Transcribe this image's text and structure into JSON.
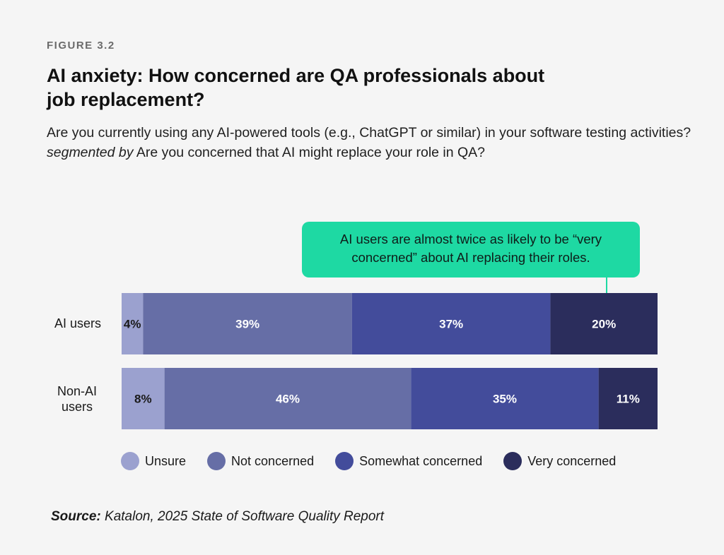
{
  "figure_label": "FIGURE 3.2",
  "title": "AI anxiety: How concerned are QA professionals about job replacement?",
  "subtitle_part1": "Are you currently using any AI-powered tools (e.g., ChatGPT or similar) in your software testing activities?",
  "subtitle_italic": "segmented by",
  "subtitle_part2": "Are you concerned that AI might replace your role in QA?",
  "callout_text": "AI users are almost twice as likely to be “very concerned” about AI replacing their roles.",
  "source_label": "Source:",
  "source_text": "Katalon, 2025 State of Software Quality Report",
  "chart_data": {
    "type": "bar",
    "orientation": "horizontal",
    "stacked": true,
    "normalized": true,
    "categories": [
      "AI users",
      "Non-AI users"
    ],
    "series": [
      {
        "name": "Unsure",
        "values": [
          4,
          8
        ],
        "color": "#9ba1cf",
        "label_color": "#1a1a1a"
      },
      {
        "name": "Not concerned",
        "values": [
          39,
          46
        ],
        "color": "#666ea6",
        "label_color": "#ffffff"
      },
      {
        "name": "Somewhat concerned",
        "values": [
          37,
          35
        ],
        "color": "#434c9b",
        "label_color": "#ffffff"
      },
      {
        "name": "Very concerned",
        "values": [
          20,
          11
        ],
        "color": "#2b2d5c",
        "label_color": "#ffffff"
      }
    ],
    "value_suffix": "%",
    "xlim": [
      0,
      100
    ],
    "legend_position": "bottom"
  },
  "legend": [
    {
      "label": "Unsure",
      "color": "#9ba1cf"
    },
    {
      "label": "Not concerned",
      "color": "#666ea6"
    },
    {
      "label": "Somewhat concerned",
      "color": "#434c9b"
    },
    {
      "label": "Very concerned",
      "color": "#2b2d5c"
    }
  ]
}
